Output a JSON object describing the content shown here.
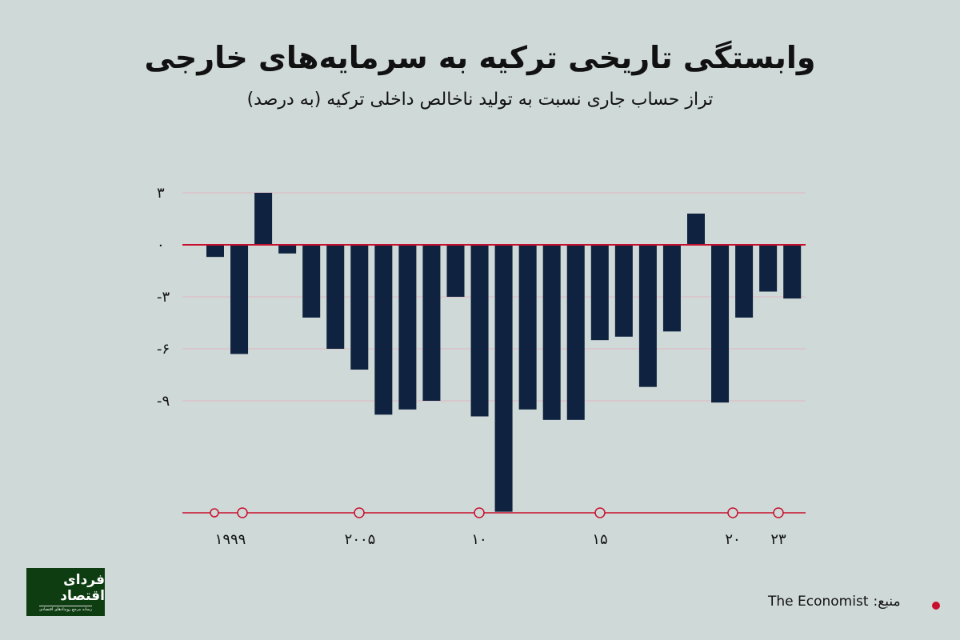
{
  "title": "وابستگی تاریخی ترکیه به سرمایه‌های خارجی",
  "subtitle": "تراز حساب جاری نسبت به تولید ناخالص داخلی ترکیه (به درصد)",
  "source": {
    "label": "منبع:",
    "value": "The Economist"
  },
  "logo": {
    "name": "فردای اقتصاد",
    "tagline": "رسانه مرجع رویدادهای اقتصادی"
  },
  "colors": {
    "bar": "#0f2340",
    "accent": "#c8102e",
    "background": "#cfd9d7"
  },
  "chart_data": {
    "type": "bar",
    "categories": [
      "1999",
      "2000",
      "2001",
      "2002",
      "2003",
      "2004",
      "2005",
      "2006",
      "2007",
      "2008",
      "2009",
      "2010",
      "2011",
      "2012",
      "2013",
      "2014",
      "2015",
      "2016",
      "2017",
      "2018",
      "2019",
      "2020",
      "2021",
      "2022",
      "2023"
    ],
    "values": [
      -0.7,
      -6.3,
      3.0,
      -0.5,
      -4.2,
      -6.0,
      -7.2,
      -9.8,
      -9.5,
      -9.0,
      -3.0,
      -9.9,
      -15.4,
      -9.5,
      -10.1,
      -10.1,
      -5.5,
      -5.3,
      -8.2,
      -5.0,
      1.8,
      -9.1,
      -4.2,
      -2.7,
      -3.1
    ],
    "ylim": [
      -15.4,
      3.5
    ],
    "yticks": [
      {
        "value": 3,
        "label": "۳"
      },
      {
        "value": 0,
        "label": "۰"
      },
      {
        "value": -3,
        "label": "-۳"
      },
      {
        "value": -6,
        "label": "-۶"
      },
      {
        "value": -9,
        "label": "-۹"
      }
    ],
    "xticks": [
      {
        "year": "1999",
        "label": "۱۹۹۹"
      },
      {
        "year": "2005",
        "label": "۲۰۰۵"
      },
      {
        "year": "2010",
        "label": "۱۰"
      },
      {
        "year": "2015",
        "label": "۱۵"
      },
      {
        "year": "2020",
        "label": "۲۰"
      },
      {
        "year": "2023",
        "label": "۲۳"
      }
    ],
    "grid": true
  }
}
